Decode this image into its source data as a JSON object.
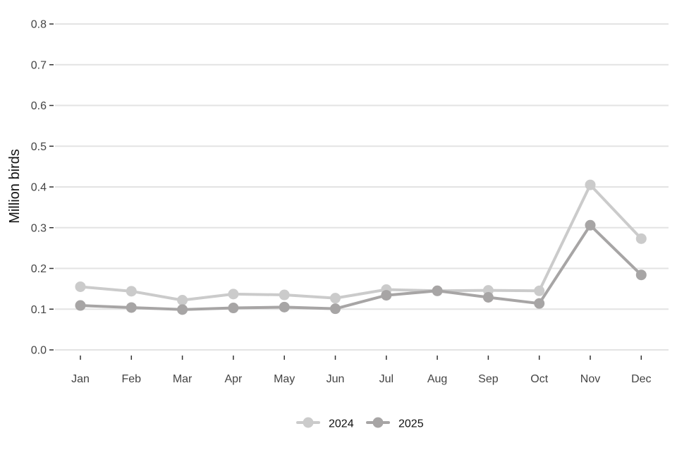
{
  "chart_data": {
    "type": "line",
    "title": "",
    "xlabel": "",
    "ylabel": "Million birds",
    "categories": [
      "Jan",
      "Feb",
      "Mar",
      "Apr",
      "May",
      "Jun",
      "Jul",
      "Aug",
      "Sep",
      "Oct",
      "Nov",
      "Dec"
    ],
    "ylim": [
      0,
      0.8
    ],
    "yticks": [
      "0.0",
      "0.1",
      "0.2",
      "0.3",
      "0.4",
      "0.5",
      "0.6",
      "0.7",
      "0.8"
    ],
    "grid": "horizontal",
    "legend_position": "bottom",
    "series": [
      {
        "name": "2024",
        "color": "#cbcbcb",
        "values": [
          0.155,
          0.144,
          0.122,
          0.137,
          0.135,
          0.127,
          0.148,
          0.145,
          0.146,
          0.145,
          0.405,
          0.273
        ]
      },
      {
        "name": "2025",
        "color": "#a7a5a5",
        "values": [
          0.109,
          0.104,
          0.099,
          0.103,
          0.105,
          0.101,
          0.134,
          0.145,
          0.129,
          0.114,
          0.306,
          0.184
        ]
      }
    ]
  }
}
